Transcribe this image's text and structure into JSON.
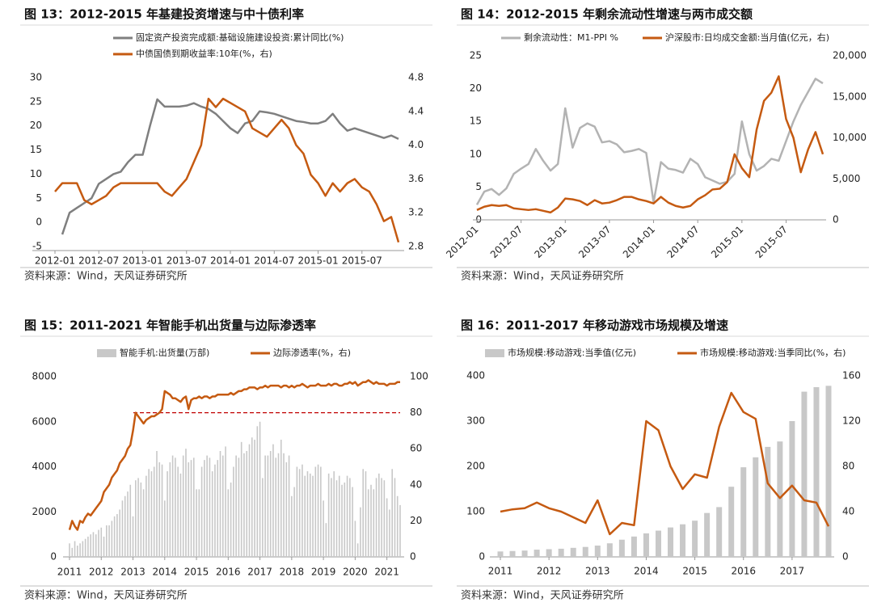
{
  "chart_data": [
    {
      "type": "line",
      "title": "图 13：2012-2015 年基建投资增速与中十债利率",
      "source": "资料来源：Wind，天风证券研究所",
      "categories": [
        "2012-01",
        null,
        null,
        null,
        null,
        null,
        "2012-07",
        null,
        null,
        null,
        null,
        null,
        "2013-01",
        null,
        null,
        null,
        null,
        null,
        "2013-07",
        null,
        null,
        null,
        null,
        null,
        "2014-01",
        null,
        null,
        null,
        null,
        null,
        "2014-07",
        null,
        null,
        null,
        null,
        null,
        "2015-01",
        null,
        null,
        null,
        null,
        null,
        "2015-07",
        null,
        null,
        null,
        null,
        null
      ],
      "ylim": [
        -5,
        30
      ],
      "yticks": [
        -5,
        0,
        5,
        10,
        15,
        20,
        25,
        30
      ],
      "y2lim": [
        2.8,
        4.8
      ],
      "y2ticks": [
        2.8,
        3.2,
        3.6,
        {
          "value": 4,
          "label": "4.0"
        },
        4.4,
        4.8
      ],
      "series": [
        {
          "name": "固定资产投资完成额:基础设施建设投资:累计同比(%)",
          "kind": "line",
          "axis": "y",
          "color": "#7f7f7f",
          "values": [
            null,
            -2.5,
            2,
            3,
            4,
            5,
            8,
            9,
            10,
            10.5,
            12.5,
            14,
            14,
            20,
            25.5,
            24,
            24,
            24,
            24.2,
            24.7,
            24,
            23.5,
            22.5,
            21,
            19.5,
            18.5,
            20.5,
            21,
            23,
            22.8,
            22.5,
            22,
            21.5,
            21,
            20.8,
            20.5,
            20.5,
            21,
            22.5,
            20.5,
            19,
            19.5,
            19,
            18.5,
            18,
            17.5,
            18,
            17.3
          ]
        },
        {
          "name": "中债国债到期收益率:10年(%，右)",
          "kind": "line",
          "axis": "y2",
          "color": "#c55a11",
          "values": [
            3.45,
            3.55,
            3.55,
            3.55,
            3.35,
            3.3,
            3.35,
            3.4,
            3.5,
            3.55,
            3.55,
            3.55,
            3.55,
            3.55,
            3.55,
            3.45,
            3.4,
            3.5,
            3.6,
            3.8,
            4.0,
            4.55,
            4.45,
            4.55,
            4.5,
            4.45,
            4.4,
            4.2,
            4.15,
            4.1,
            4.2,
            4.3,
            4.2,
            4.0,
            3.9,
            3.65,
            3.55,
            3.4,
            3.55,
            3.45,
            3.55,
            3.6,
            3.5,
            3.45,
            3.3,
            3.1,
            3.15,
            2.85
          ]
        }
      ]
    },
    {
      "type": "line",
      "title": "图 14：2012-2015 年剩余流动性增速与两市成交额",
      "source": "资料来源：Wind，天风证券研究所",
      "categories": [
        "2012-01",
        null,
        null,
        null,
        null,
        null,
        "2012-07",
        null,
        null,
        null,
        null,
        null,
        "2013-01",
        null,
        null,
        null,
        null,
        null,
        "2013-07",
        null,
        null,
        null,
        null,
        null,
        "2014-01",
        null,
        null,
        null,
        null,
        null,
        "2014-07",
        null,
        null,
        null,
        null,
        null,
        "2015-01",
        null,
        null,
        null,
        null,
        null,
        "2015-07",
        null,
        null,
        null,
        null,
        null
      ],
      "ylim": [
        0,
        25
      ],
      "yticks": [
        0,
        5,
        10,
        15,
        20,
        25
      ],
      "y2lim": [
        0,
        20000
      ],
      "y2ticks": [
        0,
        {
          "value": 5000,
          "label": "5,000"
        },
        {
          "value": 10000,
          "label": "10,000"
        },
        {
          "value": 15000,
          "label": "15,000"
        },
        {
          "value": 20000,
          "label": "20,000"
        }
      ],
      "series": [
        {
          "name": "剩余流动性：M1-PPI %",
          "kind": "line",
          "axis": "y",
          "color": "#b3b3b3",
          "values": [
            2.3,
            4.3,
            4.7,
            3.8,
            4.8,
            7,
            7.8,
            8.5,
            10.8,
            9,
            7.5,
            8.5,
            17,
            11,
            14,
            14.7,
            14.2,
            11.8,
            12,
            11.5,
            10.3,
            10.5,
            10.8,
            10.2,
            2.7,
            8.8,
            7.8,
            7.6,
            7.2,
            9.3,
            8.5,
            6.5,
            6,
            5.5,
            5.8,
            7,
            15,
            10,
            7.5,
            8.2,
            9.3,
            9,
            12,
            15,
            17.5,
            19.5,
            21.5,
            20.8
          ]
        },
        {
          "name": "沪深股市:日均成交金额:当月值(亿元，右)",
          "kind": "line",
          "axis": "y2",
          "color": "#c55a11",
          "values": [
            1200,
            1600,
            1800,
            1700,
            1800,
            1400,
            1300,
            1200,
            1300,
            1100,
            900,
            1500,
            2600,
            2500,
            2300,
            1800,
            2400,
            2000,
            2100,
            2400,
            2800,
            2800,
            2500,
            2300,
            2000,
            2800,
            2100,
            1700,
            1500,
            1700,
            2500,
            3000,
            3700,
            3800,
            4600,
            8000,
            6300,
            5200,
            11000,
            14500,
            15500,
            17500,
            12300,
            10000,
            5800,
            8600,
            10700,
            8000
          ]
        }
      ]
    },
    {
      "type": "combo",
      "title": "图 15：2011-2021 年智能手机出货量与边际渗透率",
      "source": "资料来源：Wind，天风证券研究所",
      "categories": [
        "2011",
        null,
        null,
        null,
        null,
        null,
        null,
        null,
        null,
        null,
        null,
        null,
        "2012",
        null,
        null,
        null,
        null,
        null,
        null,
        null,
        null,
        null,
        null,
        null,
        "2013",
        null,
        null,
        null,
        null,
        null,
        null,
        null,
        null,
        null,
        null,
        null,
        "2014",
        null,
        null,
        null,
        null,
        null,
        null,
        null,
        null,
        null,
        null,
        null,
        "2015",
        null,
        null,
        null,
        null,
        null,
        null,
        null,
        null,
        null,
        null,
        null,
        "2016",
        null,
        null,
        null,
        null,
        null,
        null,
        null,
        null,
        null,
        null,
        null,
        "2017",
        null,
        null,
        null,
        null,
        null,
        null,
        null,
        null,
        null,
        null,
        null,
        "2018",
        null,
        null,
        null,
        null,
        null,
        null,
        null,
        null,
        null,
        null,
        null,
        "2019",
        null,
        null,
        null,
        null,
        null,
        null,
        null,
        null,
        null,
        null,
        null,
        "2020",
        null,
        null,
        null,
        null,
        null,
        null,
        null,
        null,
        null,
        null,
        null,
        "2021",
        null,
        null,
        null,
        null,
        null
      ],
      "ylim": [
        0,
        8000
      ],
      "yticks": [
        0,
        2000,
        4000,
        6000,
        8000
      ],
      "y2lim": [
        0,
        100
      ],
      "y2ticks": [
        0,
        20,
        40,
        60,
        80,
        100
      ],
      "hline": 80,
      "hline_color": "#c00000",
      "series": [
        {
          "name": "智能手机:出货量(万部)",
          "kind": "bar",
          "axis": "y",
          "color": "#c8c8c8",
          "values": [
            600,
            400,
            700,
            500,
            600,
            700,
            800,
            900,
            1000,
            1100,
            1000,
            1200,
            1300,
            900,
            1400,
            1400,
            1600,
            1800,
            1900,
            2100,
            2500,
            2700,
            2900,
            3200,
            1800,
            3400,
            3500,
            3300,
            3000,
            3600,
            3900,
            3800,
            4000,
            4700,
            4200,
            4100,
            2500,
            3800,
            4200,
            4500,
            4400,
            4000,
            3700,
            4500,
            4800,
            4200,
            4300,
            4400,
            3000,
            3000,
            4000,
            4300,
            4500,
            4400,
            3800,
            4100,
            4300,
            4700,
            4500,
            4900,
            3000,
            3300,
            4000,
            4500,
            4400,
            5100,
            4600,
            4700,
            5000,
            5300,
            5200,
            5800,
            6000,
            3500,
            4500,
            4500,
            4700,
            5000,
            4400,
            4600,
            5200,
            4600,
            4200,
            4500,
            2700,
            3100,
            4000,
            3900,
            4100,
            3600,
            3800,
            3700,
            3600,
            4000,
            4100,
            4000,
            2500,
            1500,
            3700,
            3500,
            3800,
            3400,
            3600,
            3200,
            3300,
            3600,
            3500,
            3100,
            1600,
            600,
            2200,
            3900,
            3800,
            3000,
            3200,
            3000,
            3500,
            3700,
            3500,
            3400,
            2600,
            2100,
            3900,
            3500,
            2700,
            2300
          ]
        },
        {
          "name": "边际渗透率(%，右)",
          "kind": "line",
          "axis": "y2",
          "color": "#c55a11",
          "values": [
            15,
            20,
            17,
            15,
            20,
            19,
            22,
            24,
            23,
            25,
            27,
            29,
            31,
            36,
            38,
            40,
            44,
            46,
            48,
            52,
            54,
            56,
            60,
            62,
            70,
            80,
            78,
            76,
            74,
            76,
            77,
            78,
            78,
            79,
            80,
            82,
            92,
            91,
            90,
            88,
            88,
            87,
            86,
            88,
            89,
            82,
            87,
            88,
            88,
            89,
            88,
            89,
            89,
            88,
            89,
            89,
            90,
            90,
            90,
            90,
            90,
            91,
            90,
            91,
            92,
            92,
            93,
            93,
            94,
            94,
            94,
            93,
            94,
            94,
            95,
            94,
            95,
            95,
            95,
            95,
            94,
            95,
            95,
            94,
            95,
            94,
            95,
            95,
            96,
            95,
            94,
            95,
            95,
            95,
            96,
            95,
            95,
            95,
            96,
            95,
            96,
            96,
            95,
            95,
            96,
            96,
            97,
            96,
            97,
            95,
            96,
            97,
            97,
            98,
            97,
            96,
            97,
            96,
            96,
            96,
            95,
            96,
            96,
            96,
            97,
            97
          ]
        }
      ]
    },
    {
      "type": "combo",
      "title": "图 16：2011-2017 年移动游戏市场规模及增速",
      "source": "资料来源：Wind，天风证券研究所",
      "categories": [
        "2011",
        null,
        null,
        null,
        "2012",
        null,
        null,
        null,
        "2013",
        null,
        null,
        null,
        "2014",
        null,
        null,
        null,
        "2015",
        null,
        null,
        null,
        "2016",
        null,
        null,
        null,
        "2017",
        null,
        null,
        null
      ],
      "ylim": [
        0,
        400
      ],
      "yticks": [
        0,
        100,
        200,
        300,
        400
      ],
      "y2lim": [
        0,
        160
      ],
      "y2ticks": [
        0,
        40,
        80,
        120,
        160
      ],
      "series": [
        {
          "name": "市场规模:移动游戏:当季值(亿元)",
          "kind": "bar",
          "axis": "y",
          "color": "#c8c8c8",
          "values": [
            12,
            13,
            14,
            16,
            17,
            18,
            20,
            22,
            25,
            30,
            38,
            45,
            52,
            58,
            65,
            72,
            80,
            97,
            110,
            155,
            198,
            220,
            243,
            255,
            300,
            365,
            375,
            378
          ]
        },
        {
          "name": "市场规模:移动游戏:当季同比(%，右)",
          "kind": "line",
          "axis": "y2",
          "color": "#c55a11",
          "values": [
            40,
            42,
            43,
            48,
            43,
            40,
            35,
            30,
            50,
            20,
            30,
            28,
            120,
            112,
            80,
            60,
            73,
            70,
            115,
            145,
            128,
            122,
            65,
            52,
            63,
            50,
            48,
            27
          ]
        }
      ]
    }
  ]
}
